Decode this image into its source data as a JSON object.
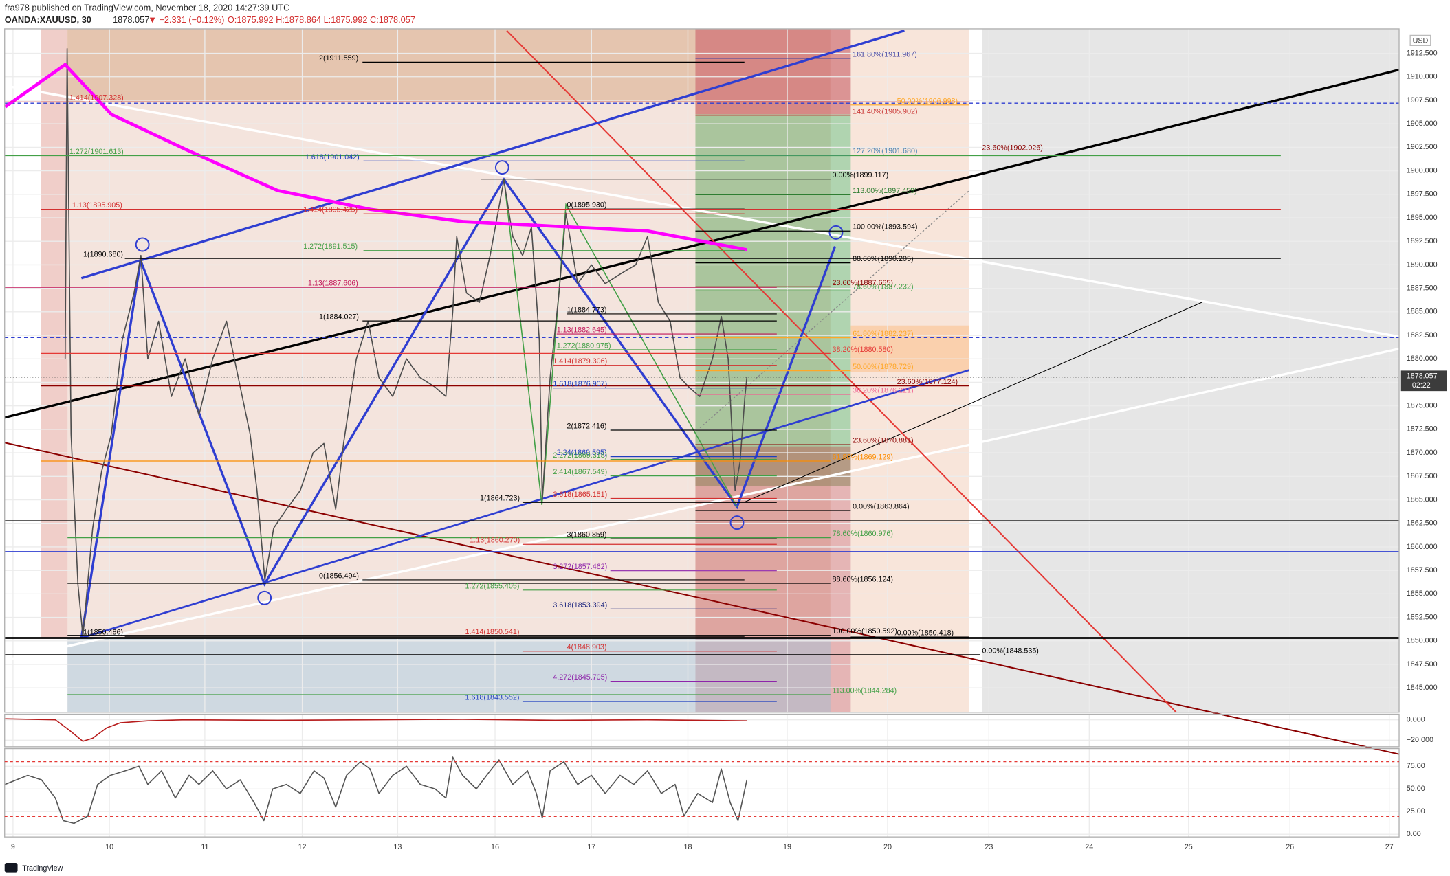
{
  "header": {
    "publisher": "fra978 published on TradingView.com, November 18, 2020 14:27:39 UTC",
    "symbol": "OANDA:XAUUSD, 30",
    "last": "1878.057",
    "change": "▼ −2.331 (−0.12%)",
    "ohlc": "O:1875.992 H:1878.864 L:1875.992 C:1878.057"
  },
  "footer": {
    "brand": "TradingView"
  },
  "chart_data": [
    {
      "type": "line",
      "currency": "USD",
      "last_price": 1878.057,
      "countdown": "02:22",
      "grid": true,
      "xlim": [
        -0.085,
        14.09
      ],
      "ylim": [
        1842.4,
        1915.1
      ],
      "yticks": [
        {
          "value": 1845,
          "label": "1845.000"
        },
        {
          "value": 1847.5,
          "label": "1847.500"
        },
        {
          "value": 1850,
          "label": "1850.000"
        },
        {
          "value": 1852.5,
          "label": "1852.500"
        },
        {
          "value": 1855,
          "label": "1855.000"
        },
        {
          "value": 1857.5,
          "label": "1857.500"
        },
        {
          "value": 1860,
          "label": "1860.000"
        },
        {
          "value": 1862.5,
          "label": "1862.500"
        },
        {
          "value": 1865,
          "label": "1865.000"
        },
        {
          "value": 1867.5,
          "label": "1867.500"
        },
        {
          "value": 1870,
          "label": "1870.000"
        },
        {
          "value": 1872.5,
          "label": "1872.500"
        },
        {
          "value": 1875,
          "label": "1875.000"
        },
        {
          "value": 1877.5,
          "label": "1877.500"
        },
        {
          "value": 1880,
          "label": "1880.000"
        },
        {
          "value": 1882.5,
          "label": "1882.500"
        },
        {
          "value": 1885,
          "label": "1885.000"
        },
        {
          "value": 1887.5,
          "label": "1887.500"
        },
        {
          "value": 1890,
          "label": "1890.000"
        },
        {
          "value": 1892.5,
          "label": "1892.500"
        },
        {
          "value": 1895,
          "label": "1895.000"
        },
        {
          "value": 1897.5,
          "label": "1897.500"
        },
        {
          "value": 1900,
          "label": "1900.000"
        },
        {
          "value": 1902.5,
          "label": "1902.500"
        },
        {
          "value": 1905,
          "label": "1905.000"
        },
        {
          "value": 1907.5,
          "label": "1907.500"
        },
        {
          "value": 1910,
          "label": "1910.000"
        },
        {
          "value": 1912.5,
          "label": "1912.500"
        }
      ],
      "series": [
        {
          "color": "#4d4d4d",
          "x": [
            0.53,
            0.55,
            0.59,
            0.66,
            0.71,
            0.81,
            0.9,
            1.0,
            1.11,
            1.23,
            1.3,
            1.37,
            1.48,
            1.61,
            1.75,
            1.89,
            2.03,
            2.17,
            2.29,
            2.41,
            2.48,
            2.56,
            2.65,
            2.78,
            2.92,
            3.05,
            3.16,
            3.28,
            3.36,
            3.49,
            3.61,
            3.72,
            3.86,
            4.0,
            4.14,
            4.29,
            4.4,
            4.47,
            4.51,
            4.61,
            4.74,
            4.85,
            4.99,
            5.08,
            5.18,
            5.27,
            5.35,
            5.38,
            5.46,
            5.55,
            5.62,
            5.74,
            5.88,
            6.02,
            6.17,
            6.33,
            6.45,
            6.56,
            6.68,
            6.78,
            6.87,
            6.98,
            7.11,
            7.2,
            7.27,
            7.34,
            7.39,
            7.44,
            7.46
          ],
          "values": [
            1880,
            1913,
            1872,
            1856,
            1850.5,
            1862,
            1868,
            1872,
            1882,
            1887,
            1891,
            1880,
            1884,
            1876,
            1880,
            1874,
            1880,
            1884,
            1878,
            1872,
            1866,
            1856.5,
            1862,
            1864,
            1866,
            1870,
            1871,
            1864,
            1871,
            1880,
            1884,
            1878,
            1876,
            1880,
            1878,
            1877,
            1876,
            1885,
            1893,
            1887,
            1886,
            1891,
            1899,
            1893,
            1891,
            1894,
            1882,
            1865,
            1878,
            1887,
            1895.5,
            1888,
            1890,
            1888,
            1889,
            1890,
            1893,
            1886,
            1884,
            1878,
            1877,
            1876,
            1880,
            1884.5,
            1880,
            1866,
            1869,
            1876,
            1878.057
          ]
        },
        {
          "color": "#ff00ff",
          "x": [
            -0.08,
            0.53,
            1.0,
            1.75,
            2.69,
            3.63,
            4.57,
            5.51,
            6.45,
            7.46
          ],
          "values": [
            1906.8,
            1911.3,
            1906.0,
            1902.3,
            1897.9,
            1895.9,
            1894.6,
            1894.1,
            1893.6,
            1891.6
          ]
        }
      ],
      "annotations": [
        {
          "label": "2(1911.559)",
          "value": 1911.559,
          "color": "#000000"
        },
        {
          "label": "161.80%(1911.967)",
          "value": 1911.967,
          "color": "#3f3f9f"
        },
        {
          "label": "1.414(1907.328)",
          "value": 1907.328,
          "color": "#d32f2f"
        },
        {
          "label": "50.00%(1906.998)",
          "value": 1906.998,
          "color": "#ffa726"
        },
        {
          "label": "141.40%(1905.902)",
          "value": 1905.902,
          "color": "#c62828"
        },
        {
          "label": "1.272(1901.613)",
          "value": 1901.613,
          "color": "#43a047"
        },
        {
          "label": "1.618(1901.042)",
          "value": 1901.042,
          "color": "#1e3fbf"
        },
        {
          "label": "127.20%(1901.680)",
          "value": 1901.68,
          "color": "#4682b4"
        },
        {
          "label": "23.60%(1902.026)",
          "value": 1902.026,
          "color": "#8b0000"
        },
        {
          "label": "0.00%(1899.117)",
          "value": 1899.117,
          "color": "#000000"
        },
        {
          "label": "0(1895.930)",
          "value": 1895.93,
          "color": "#000000"
        },
        {
          "label": "1.13(1895.905)",
          "value": 1895.905,
          "color": "#d32f2f"
        },
        {
          "label": "1.414(1895.425)",
          "value": 1895.425,
          "color": "#d32f2f"
        },
        {
          "label": "113.00%(1897.459)",
          "value": 1897.459,
          "color": "#2e7d32"
        },
        {
          "label": "100.00%(1893.594)",
          "value": 1893.594,
          "color": "#000000"
        },
        {
          "label": "1.272(1891.515)",
          "value": 1891.515,
          "color": "#43a047"
        },
        {
          "label": "1(1890.680)",
          "value": 1890.68,
          "color": "#000000"
        },
        {
          "label": "88.60%(1890.205)",
          "value": 1890.205,
          "color": "#000000"
        },
        {
          "label": "1.13(1887.606)",
          "value": 1887.606,
          "color": "#c2185b"
        },
        {
          "label": "23.60%(1887.665)",
          "value": 1887.665,
          "color": "#8b0000"
        },
        {
          "label": "78.60%(1887.232)",
          "value": 1887.232,
          "color": "#43a047"
        },
        {
          "label": "1(1884.027)",
          "value": 1884.027,
          "color": "#000000"
        },
        {
          "label": "1(1884.773)",
          "value": 1884.773,
          "color": "#000000"
        },
        {
          "label": "1.13(1882.645)",
          "value": 1882.645,
          "color": "#c2185b"
        },
        {
          "label": "61.80%(1882.237)",
          "value": 1882.237,
          "color": "#ffa726"
        },
        {
          "label": "1.272(1880.975)",
          "value": 1880.975,
          "color": "#43a047"
        },
        {
          "label": "38.20%(1880.580)",
          "value": 1880.58,
          "color": "#e53935"
        },
        {
          "label": "1.414(1879.306)",
          "value": 1879.306,
          "color": "#d32f2f"
        },
        {
          "label": "50.00%(1878.729)",
          "value": 1878.729,
          "color": "#ffa726"
        },
        {
          "label": "1.618(1876.907)",
          "value": 1876.907,
          "color": "#1e3fbf"
        },
        {
          "label": "23.60%(1877.124)",
          "value": 1877.124,
          "color": "#8b0000"
        },
        {
          "label": "38.20%(1876.221)",
          "value": 1876.221,
          "color": "#f06292"
        },
        {
          "label": "2(1872.416)",
          "value": 1872.416,
          "color": "#000000"
        },
        {
          "label": "23.60%(1870.881)",
          "value": 1870.881,
          "color": "#8b0000"
        },
        {
          "label": "2.24(1869.595)",
          "value": 1869.595,
          "color": "#1e3fbf"
        },
        {
          "label": "2.272(1869.318)",
          "value": 1869.318,
          "color": "#43a047"
        },
        {
          "label": "61.80%(1869.129)",
          "value": 1869.129,
          "color": "#fb8c00"
        },
        {
          "label": "2.414(1867.549)",
          "value": 1867.549,
          "color": "#43a047"
        },
        {
          "label": "3.618(1865.151)",
          "value": 1865.151,
          "color": "#d32f2f"
        },
        {
          "label": "1(1864.723)",
          "value": 1864.723,
          "color": "#000000"
        },
        {
          "label": "0.00%(1863.864)",
          "value": 1863.864,
          "color": "#000000"
        },
        {
          "label": "78.60%(1860.976)",
          "value": 1860.976,
          "color": "#43a047"
        },
        {
          "label": "1.13(1860.270)",
          "value": 1860.27,
          "color": "#d32f2f"
        },
        {
          "label": "3(1860.859)",
          "value": 1860.859,
          "color": "#000000"
        },
        {
          "label": "3.272(1857.462)",
          "value": 1857.462,
          "color": "#8e24aa"
        },
        {
          "label": "0(1856.494)",
          "value": 1856.494,
          "color": "#000000"
        },
        {
          "label": "88.60%(1856.124)",
          "value": 1856.124,
          "color": "#000000"
        },
        {
          "label": "1.272(1855.405)",
          "value": 1855.405,
          "color": "#43a047"
        },
        {
          "label": "3.618(1853.394)",
          "value": 1853.394,
          "color": "#1a237e"
        },
        {
          "label": "1(1850.486)",
          "value": 1850.486,
          "color": "#000000"
        },
        {
          "label": "1.414(1850.541)",
          "value": 1850.541,
          "color": "#d32f2f"
        },
        {
          "label": "100.00%(1850.592)",
          "value": 1850.592,
          "color": "#000000"
        },
        {
          "label": "0.00%(1850.418)",
          "value": 1850.418,
          "color": "#000000"
        },
        {
          "label": "0.00%(1848.535)",
          "value": 1848.535,
          "color": "#000000"
        },
        {
          "label": "4(1848.903)",
          "value": 1848.903,
          "color": "#d32f2f"
        },
        {
          "label": "4.272(1845.705)",
          "value": 1845.705,
          "color": "#8e24aa"
        },
        {
          "label": "113.00%(1844.284)",
          "value": 1844.284,
          "color": "#43a047"
        },
        {
          "label": "1.618(1843.552)",
          "value": 1843.552,
          "color": "#1e3fbf"
        }
      ]
    },
    {
      "type": "line",
      "xlim": [
        -0.085,
        14.09
      ],
      "ylim": [
        -26.4,
        5.5
      ],
      "yticks": [
        {
          "value": 0,
          "label": "0.000"
        },
        {
          "value": -20,
          "label": "−20.000"
        }
      ],
      "series": [
        {
          "color": "#b71c1c",
          "x": [
            -0.08,
            0.43,
            0.57,
            0.71,
            0.81,
            0.95,
            1.09,
            1.37,
            1.75,
            2.69,
            3.63,
            4.57,
            5.51,
            6.45,
            7.46
          ],
          "values": [
            1,
            0,
            -10,
            -21,
            -18,
            -8,
            -3,
            -1,
            0,
            -0.5,
            0,
            0.5,
            -0.5,
            0,
            -1
          ]
        }
      ]
    },
    {
      "type": "line",
      "xlim": [
        -0.085,
        14.09
      ],
      "ylim": [
        -3,
        94.5
      ],
      "yticks": [
        {
          "value": 75,
          "label": "75.00"
        },
        {
          "value": 50,
          "label": "50.00"
        },
        {
          "value": 25,
          "label": "25.00"
        },
        {
          "value": 0,
          "label": "0.00"
        }
      ],
      "xticks": [
        {
          "value": 0,
          "label": "9"
        },
        {
          "value": 0.98,
          "label": "10"
        },
        {
          "value": 1.95,
          "label": "11"
        },
        {
          "value": 2.94,
          "label": "12"
        },
        {
          "value": 3.91,
          "label": "13"
        },
        {
          "value": 4.9,
          "label": "16"
        },
        {
          "value": 5.88,
          "label": "17"
        },
        {
          "value": 6.86,
          "label": "18"
        },
        {
          "value": 7.87,
          "label": "19"
        },
        {
          "value": 8.89,
          "label": "20"
        },
        {
          "value": 9.92,
          "label": "23"
        },
        {
          "value": 10.94,
          "label": "24"
        },
        {
          "value": 11.95,
          "label": "25"
        },
        {
          "value": 12.98,
          "label": "26"
        },
        {
          "value": 13.99,
          "label": "27"
        }
      ],
      "series": [
        {
          "color": "#555555",
          "x": [
            -0.08,
            0.15,
            0.29,
            0.43,
            0.51,
            0.62,
            0.76,
            0.86,
            0.99,
            1.14,
            1.28,
            1.37,
            1.51,
            1.65,
            1.79,
            1.89,
            2.03,
            2.17,
            2.31,
            2.45,
            2.55,
            2.64,
            2.78,
            2.92,
            3.06,
            3.16,
            3.28,
            3.39,
            3.53,
            3.63,
            3.72,
            3.86,
            4.0,
            4.14,
            4.29,
            4.4,
            4.47,
            4.57,
            4.71,
            4.85,
            4.94,
            5.08,
            5.23,
            5.32,
            5.38,
            5.46,
            5.6,
            5.74,
            5.88,
            6.02,
            6.17,
            6.31,
            6.45,
            6.59,
            6.73,
            6.82,
            6.96,
            7.11,
            7.2,
            7.29,
            7.37,
            7.46
          ],
          "values": [
            55,
            65,
            60,
            40,
            15,
            12,
            20,
            55,
            65,
            70,
            75,
            55,
            70,
            40,
            65,
            55,
            70,
            50,
            60,
            35,
            15,
            50,
            55,
            45,
            70,
            62,
            30,
            65,
            80,
            72,
            45,
            65,
            75,
            55,
            50,
            40,
            85,
            65,
            50,
            70,
            82,
            55,
            70,
            45,
            18,
            70,
            80,
            55,
            65,
            45,
            65,
            55,
            70,
            45,
            55,
            20,
            45,
            35,
            72,
            35,
            15,
            60
          ]
        }
      ]
    }
  ]
}
